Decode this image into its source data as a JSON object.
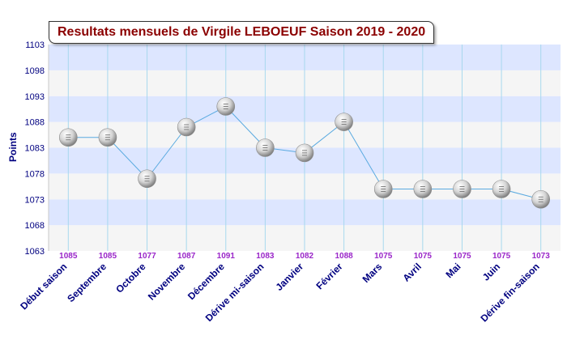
{
  "chart_data": {
    "type": "line",
    "title": "Resultats mensuels de Virgile LEBOEUF Saison 2019 - 2020",
    "ylabel": "Points",
    "xlabel": "",
    "ylim": [
      1063,
      1103
    ],
    "yticks": [
      1063,
      1068,
      1073,
      1078,
      1083,
      1088,
      1093,
      1098,
      1103
    ],
    "categories": [
      "Début saison",
      "Septembre",
      "Octobre",
      "Novembre",
      "Décembre",
      "Dérive mi-saison",
      "Janvier",
      "Février",
      "Mars",
      "Avril",
      "Mai",
      "Juin",
      "Dérive fin-saison"
    ],
    "values": [
      1085,
      1085,
      1077,
      1087,
      1091,
      1083,
      1082,
      1088,
      1075,
      1075,
      1075,
      1075,
      1073
    ],
    "data_labels": [
      "1085",
      "1085",
      "1077",
      "1087",
      "1091",
      "1083",
      "1082",
      "1088",
      "1075",
      "1075",
      "1075",
      "1075",
      "1073"
    ],
    "grid": true,
    "legend": "none",
    "colors": {
      "band_blue": "#dde6ff",
      "band_light": "#f5f5f5",
      "grid_vertical": "#a8d8ee",
      "line": "#5aaae0",
      "data_label": "#9a26c9",
      "category_label": "#000080",
      "tick_label": "#000080",
      "title": "#8b0000"
    }
  }
}
